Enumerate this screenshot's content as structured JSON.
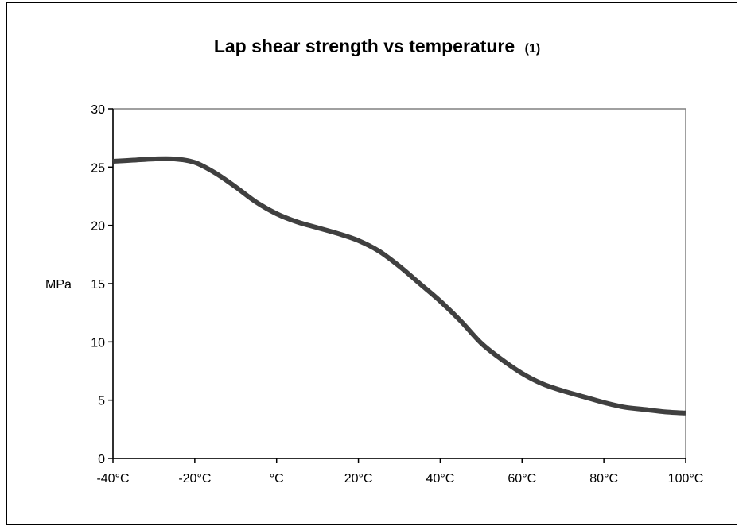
{
  "chart_data": {
    "type": "line",
    "title": "Lap shear strength vs temperature",
    "title_note": "(1)",
    "xlabel": "",
    "ylabel": "MPa",
    "x_tick_labels": [
      "-40°C",
      "-20°C",
      "°C",
      "20°C",
      "40°C",
      "60°C",
      "80°C",
      "100°C"
    ],
    "x_ticks": [
      -40,
      -20,
      0,
      20,
      40,
      60,
      80,
      100
    ],
    "xlim": [
      -40,
      100
    ],
    "y_ticks": [
      0,
      5,
      10,
      15,
      20,
      25,
      30
    ],
    "ylim": [
      0,
      30
    ],
    "grid": false,
    "legend": "none",
    "series": [
      {
        "color": "#404040",
        "x": [
          -40,
          -35,
          -30,
          -25,
          -20,
          -15,
          -10,
          -5,
          0,
          5,
          10,
          15,
          20,
          25,
          30,
          35,
          40,
          45,
          50,
          55,
          60,
          65,
          70,
          75,
          80,
          85,
          90,
          95,
          100
        ],
        "y": [
          25.5,
          25.6,
          25.7,
          25.7,
          25.4,
          24.5,
          23.3,
          22.0,
          21.0,
          20.3,
          19.8,
          19.3,
          18.7,
          17.8,
          16.5,
          15.0,
          13.5,
          11.8,
          9.9,
          8.5,
          7.3,
          6.4,
          5.8,
          5.3,
          4.8,
          4.4,
          4.2,
          4.0,
          3.9
        ]
      }
    ]
  }
}
